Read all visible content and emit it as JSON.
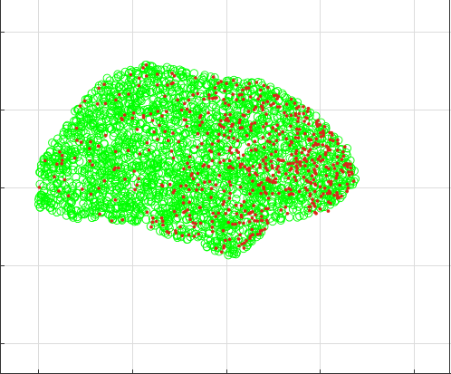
{
  "chart_data": {
    "type": "scatter",
    "title": "",
    "xlabel": "",
    "ylabel": "",
    "grid": true,
    "legend": "none",
    "xlim": [
      -0.4,
      4.4
    ],
    "ylim": [
      -0.4,
      4.4
    ],
    "xticks": [
      0,
      1,
      2,
      3,
      4
    ],
    "yticks": [
      0,
      1,
      2,
      3,
      4
    ],
    "shape": {
      "center": [
        1.95,
        2.18
      ],
      "outline_top": [
        [
          0.0,
          2.25
        ],
        [
          0.3,
          2.9
        ],
        [
          0.7,
          3.4
        ],
        [
          1.2,
          3.6
        ],
        [
          1.8,
          3.45
        ],
        [
          2.4,
          3.35
        ],
        [
          2.9,
          3.0
        ],
        [
          3.3,
          2.5
        ],
        [
          3.4,
          2.1
        ]
      ],
      "outline_bottom": [
        [
          3.4,
          2.1
        ],
        [
          3.1,
          1.7
        ],
        [
          2.5,
          1.55
        ],
        [
          2.1,
          1.1
        ],
        [
          1.6,
          1.3
        ],
        [
          1.0,
          1.55
        ],
        [
          0.4,
          1.6
        ],
        [
          0.0,
          1.75
        ],
        [
          0.0,
          2.25
        ]
      ]
    },
    "series": [
      {
        "name": "",
        "marker": "circle-open",
        "color": "#00ff00",
        "count": 2600
      },
      {
        "name": "",
        "marker": "point",
        "color": "#d9281a",
        "count": 620
      }
    ]
  }
}
